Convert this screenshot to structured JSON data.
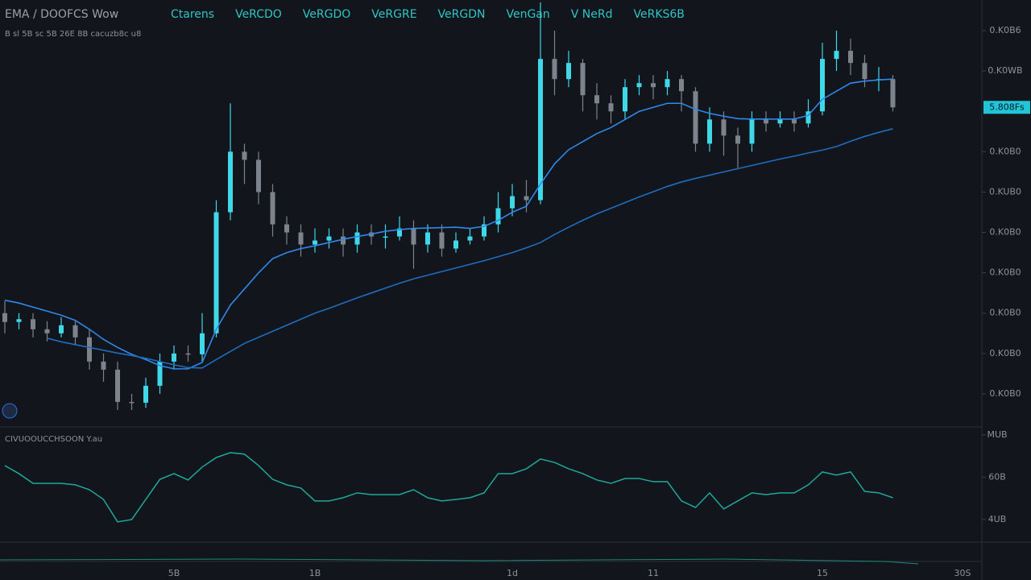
{
  "chart_data": {
    "type": "candlestick",
    "title": "EMA / DOOFCS Wow",
    "header_items": [
      "Ctarens",
      "VeRCDO",
      "VeRGDO",
      "VeRGRE",
      "VeRGDN",
      "VenGan",
      "V NeRd",
      "VeRKS6B"
    ],
    "subtitle": "B  sl  5B sc  5B 26E  8B cacuzb8c  u8",
    "categories": [
      null,
      null,
      null,
      null,
      null,
      null,
      null,
      null,
      null,
      null,
      null,
      null,
      "5B",
      null,
      null,
      null,
      null,
      null,
      null,
      null,
      null,
      null,
      "1B",
      null,
      null,
      null,
      null,
      null,
      null,
      null,
      null,
      null,
      null,
      null,
      null,
      null,
      "1d",
      null,
      null,
      null,
      null,
      null,
      null,
      null,
      null,
      null,
      "11",
      null,
      null,
      null,
      null,
      null,
      null,
      null,
      null,
      null,
      null,
      null,
      "15",
      null,
      null,
      null,
      null,
      null
    ],
    "x_axis_end_label": "30S",
    "open": [
      30,
      27.8,
      28.5,
      26,
      25,
      27,
      24,
      18,
      16,
      8,
      7.8,
      12,
      18,
      20,
      19.8,
      25,
      55,
      70,
      68,
      60,
      52,
      50,
      47,
      48,
      49,
      47,
      50,
      49,
      49,
      51,
      47,
      50,
      46,
      48,
      49,
      52,
      56,
      59,
      58,
      93,
      88,
      92,
      84,
      82,
      80,
      86,
      87,
      86,
      88,
      85,
      72,
      78,
      74,
      72,
      78,
      77,
      78,
      77,
      80,
      93,
      95,
      92,
      88,
      88
    ],
    "high": [
      33,
      30,
      30,
      28,
      29,
      28,
      26,
      20,
      18,
      10,
      14,
      20,
      22,
      22,
      30,
      58,
      82,
      72,
      70,
      62,
      54,
      52,
      51,
      51,
      51,
      52,
      52,
      52,
      54,
      53,
      52,
      52,
      50,
      51,
      54,
      60,
      62,
      63,
      107,
      100,
      95,
      93,
      87,
      84,
      88,
      89,
      89,
      90,
      89,
      86,
      81,
      80,
      76,
      80,
      80,
      80,
      80,
      83,
      97,
      100,
      98,
      94,
      91,
      89
    ],
    "low": [
      25,
      26,
      24,
      23,
      24,
      22,
      16,
      13,
      6,
      6,
      6.5,
      10,
      16,
      18,
      18,
      24,
      53,
      62,
      57,
      49,
      47,
      44,
      45,
      46,
      44,
      45,
      47,
      46,
      48,
      41,
      45,
      44,
      45,
      47,
      48,
      50,
      54,
      55,
      57,
      84,
      86,
      80,
      78,
      77,
      78,
      84,
      83,
      84,
      80,
      70,
      70,
      69,
      66,
      70,
      75,
      76,
      75,
      76,
      79,
      90,
      89,
      86,
      85,
      80
    ],
    "close": [
      27.8,
      28.5,
      26,
      25,
      27,
      24,
      18,
      16,
      8,
      7.8,
      12,
      18,
      20,
      19.8,
      25,
      55,
      70,
      68,
      60,
      52,
      50,
      47,
      48,
      49,
      47,
      50,
      49,
      49,
      51,
      47,
      50,
      46,
      48,
      49,
      52,
      56,
      59,
      58,
      93,
      88,
      92,
      84,
      82,
      80,
      86,
      87,
      86,
      88,
      85,
      72,
      78,
      74,
      72,
      78,
      77,
      78,
      77,
      80,
      93,
      95,
      92,
      88,
      88,
      81
    ],
    "up_color": "#3fd8e8",
    "down_color": "#7d838c",
    "series": [
      {
        "color": "#2f88ea",
        "values": [
          33.2,
          32.5,
          31.5,
          30.5,
          29.5,
          28.2,
          26,
          23.5,
          21.5,
          19.8,
          18.5,
          17,
          16.2,
          16.2,
          17.8,
          26,
          32,
          36,
          40,
          43.5,
          45,
          46,
          46.7,
          47.5,
          48.3,
          49,
          49.6,
          50.3,
          50.7,
          51,
          51.1,
          51.2,
          51.3,
          51,
          51.5,
          53,
          55,
          56.5,
          62,
          67,
          70.5,
          72.5,
          74.5,
          76,
          78,
          80,
          81,
          82,
          82,
          80.5,
          79.5,
          78.8,
          78.2,
          78.1,
          78.1,
          78.1,
          78.1,
          79,
          83,
          85,
          87,
          87.5,
          87.8,
          88
        ]
      },
      {
        "color": "#1f6dbf",
        "values": [
          null,
          null,
          null,
          23.8,
          22.9,
          22.2,
          21.5,
          20.8,
          20.1,
          19.5,
          18.8,
          18,
          17.2,
          16.5,
          16.4,
          18.5,
          20.5,
          22.5,
          24,
          25.5,
          27,
          28.5,
          30,
          31.2,
          32.5,
          33.8,
          35,
          36.2,
          37.4,
          38.5,
          39.4,
          40.3,
          41.2,
          42.1,
          43,
          44,
          45,
          46.2,
          47.5,
          49.5,
          51.3,
          53,
          54.6,
          56,
          57.4,
          58.8,
          60.1,
          61.4,
          62.5,
          63.4,
          64.2,
          65,
          65.8,
          66.6,
          67.4,
          68.2,
          68.9,
          69.7,
          70.4,
          71.3,
          72.6,
          73.8,
          74.8,
          75.7
        ]
      }
    ],
    "ylim": [
      1.8,
      107.6
    ],
    "yticks": [
      {
        "value": 100,
        "label": "0.K0B6"
      },
      {
        "value": 90,
        "label": "0.K0WB"
      },
      {
        "value": 70,
        "label": "0.K0B0"
      },
      {
        "value": 60,
        "label": "0.KUB0"
      },
      {
        "value": 50,
        "label": "0.K0B0"
      },
      {
        "value": 40,
        "label": "0.K0B0"
      },
      {
        "value": 30,
        "label": "0.K0B0"
      },
      {
        "value": 20,
        "label": "0.K0B0"
      },
      {
        "value": 10,
        "label": "0.K0B0"
      }
    ],
    "current_price": {
      "value": 81,
      "label": "5.808Fs"
    },
    "oscillator": {
      "title": "CIVUOOUCCHSOON Y.au",
      "color": "#1fa89a",
      "values": [
        65.5,
        61.7,
        57.1,
        57.1,
        57.1,
        56.4,
        54.1,
        49.5,
        38.9,
        40,
        49.5,
        59,
        61.7,
        58.7,
        64.8,
        69.3,
        71.6,
        70.9,
        65.5,
        59,
        56.4,
        54.9,
        48.8,
        48.8,
        50.3,
        52.6,
        51.8,
        51.8,
        51.8,
        54.1,
        50.3,
        48.8,
        49.5,
        50.3,
        52.6,
        61.7,
        61.7,
        64,
        68.6,
        67,
        64,
        61.7,
        58.7,
        57.1,
        59.4,
        59.4,
        57.9,
        57.9,
        48.8,
        45.7,
        52.6,
        45,
        48.8,
        52.6,
        51.8,
        52.6,
        52.6,
        56.4,
        62.5,
        61,
        62.5,
        53.3,
        52.6,
        50.3
      ],
      "ylim": [
        29.7,
        83
      ],
      "yticks": [
        {
          "value": 80,
          "label": "MUB"
        },
        {
          "value": 60,
          "label": "60B"
        },
        {
          "value": 40,
          "label": "4UB"
        }
      ]
    }
  }
}
